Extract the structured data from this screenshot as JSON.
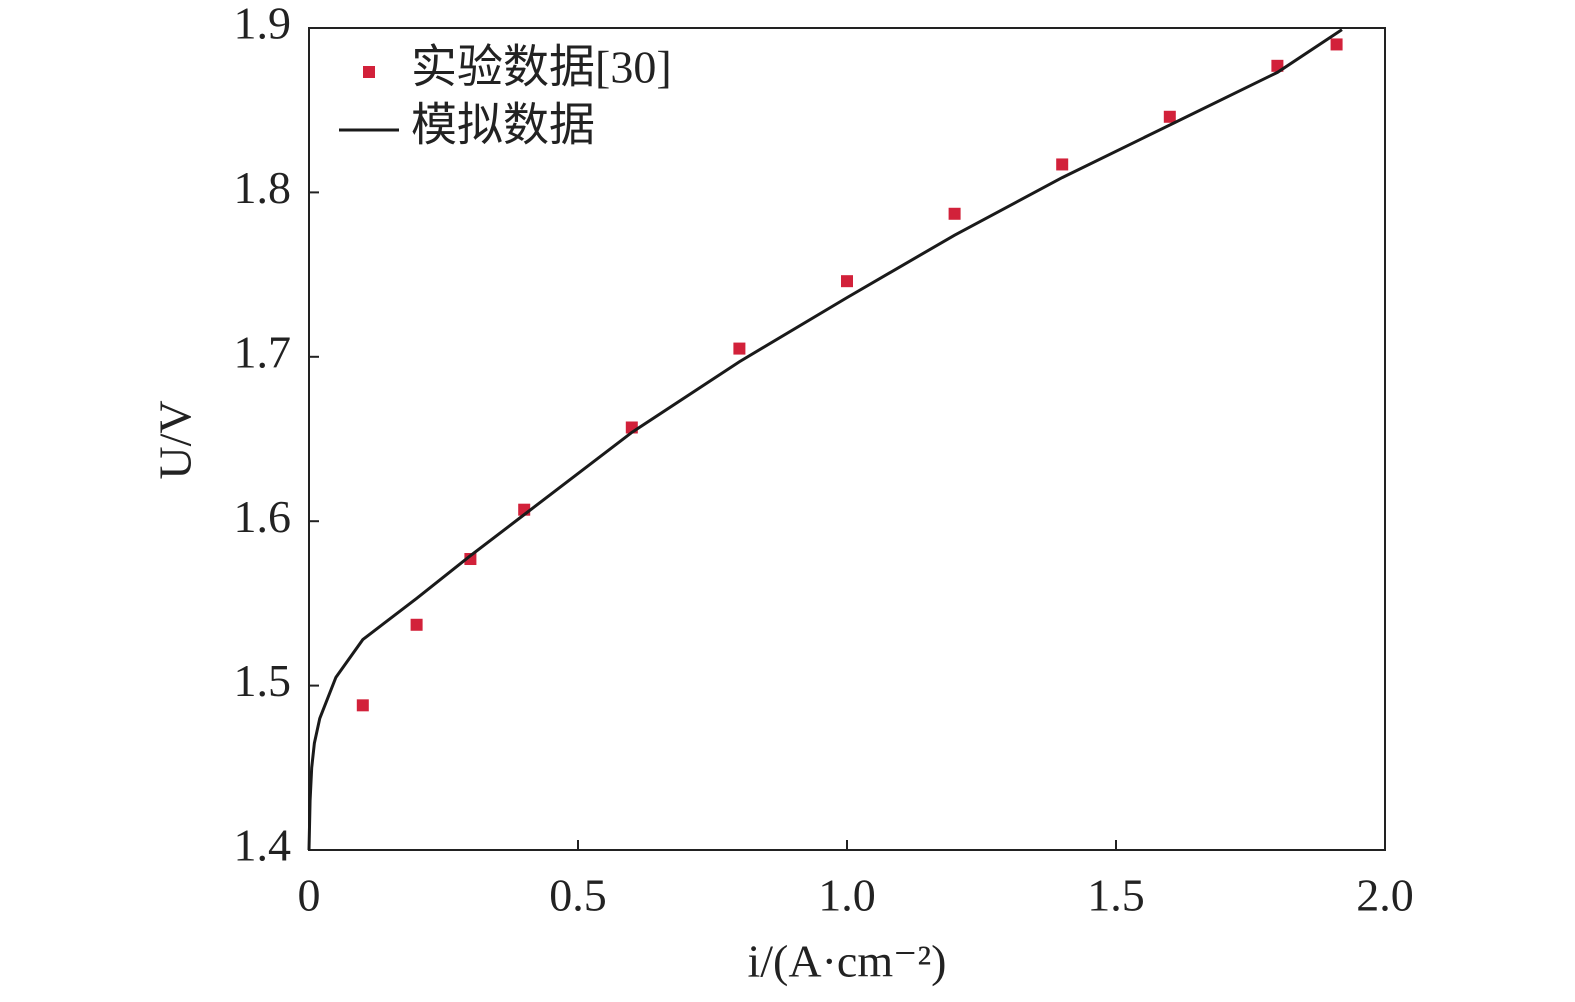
{
  "chart_data": {
    "type": "line",
    "xlabel": "i/(A·cm⁻²)",
    "ylabel": "U/V",
    "xlim": [
      0,
      2.0
    ],
    "ylim": [
      1.4,
      1.9
    ],
    "xticks": [
      0,
      0.5,
      {
        "value": 1.0,
        "label": "1.0"
      },
      1.5,
      {
        "value": 2.0,
        "label": "2.0"
      }
    ],
    "yticks": [
      1.4,
      1.5,
      1.6,
      1.7,
      1.8,
      1.9
    ],
    "legend": "upper left",
    "series": [
      {
        "name": "实验数据[30]",
        "style": "markers",
        "color": "#d2213a",
        "x": [
          0.1,
          0.2,
          0.3,
          0.4,
          0.6,
          0.8,
          1.0,
          1.2,
          1.4,
          1.6,
          1.8,
          1.91
        ],
        "values": [
          1.488,
          1.537,
          1.577,
          1.607,
          1.657,
          1.705,
          1.746,
          1.787,
          1.817,
          1.846,
          1.877,
          1.89
        ]
      },
      {
        "name": "模拟数据",
        "style": "line",
        "color": "#1a1a1a",
        "x": [
          0,
          0.002,
          0.005,
          0.01,
          0.02,
          0.05,
          0.1,
          0.2,
          0.3,
          0.4,
          0.6,
          0.8,
          1.0,
          1.2,
          1.4,
          1.6,
          1.8,
          1.92
        ],
        "values": [
          1.4,
          1.43,
          1.45,
          1.465,
          1.48,
          1.505,
          1.528,
          1.553,
          1.579,
          1.604,
          1.654,
          1.697,
          1.736,
          1.774,
          1.809,
          1.841,
          1.873,
          1.899
        ]
      }
    ]
  }
}
